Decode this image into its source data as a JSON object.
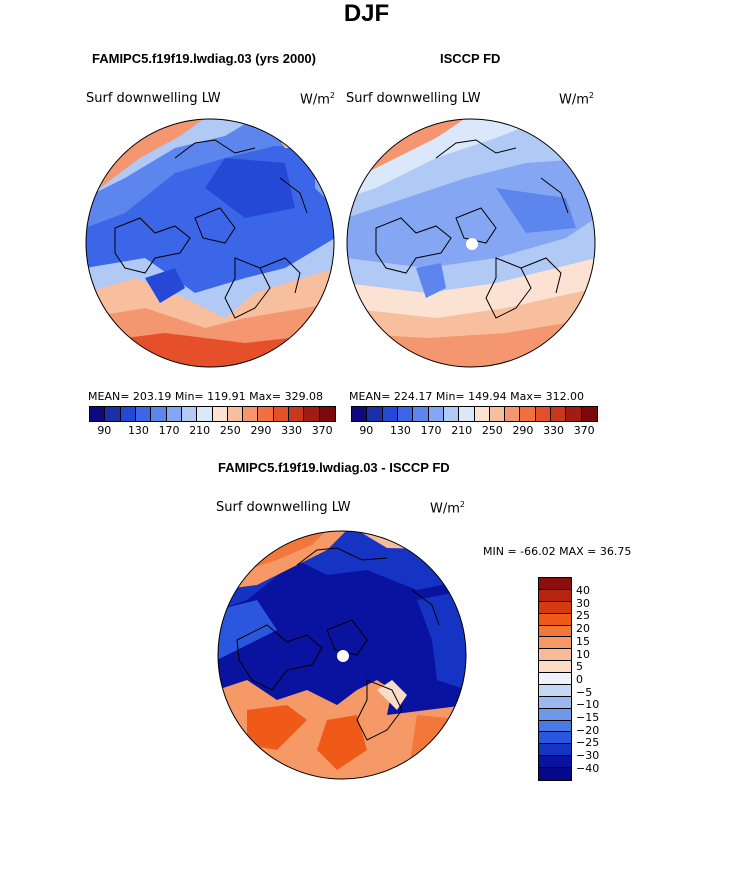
{
  "title": "DJF",
  "panels": {
    "model": {
      "subtitle": "FAMIPC5.f19f19.lwdiag.03 (yrs 2000)",
      "label": "Surf downwelling LW",
      "units": "W/m",
      "units_exp": "2",
      "stats": "MEAN= 203.19  Min= 119.91  Max= 329.08"
    },
    "obs": {
      "subtitle": "ISCCP FD",
      "label": "Surf downwelling LW",
      "units": "W/m",
      "units_exp": "2",
      "stats": "MEAN= 224.17  Min= 149.94  Max= 312.00"
    },
    "diff": {
      "subtitle": "FAMIPC5.f19f19.lwdiag.03 - ISCCP FD",
      "label": "Surf downwelling LW",
      "units": "W/m",
      "units_exp": "2",
      "stats": "MIN = -66.02 MAX =  36.75"
    }
  },
  "colorbar_abs": {
    "colors": [
      "#0c0a7e",
      "#1b2fa8",
      "#2548d6",
      "#3b66e8",
      "#5c86ee",
      "#85a6f2",
      "#b0c9f5",
      "#dbe7fa",
      "#fbe2d2",
      "#f8bf9f",
      "#f4966f",
      "#f0703e",
      "#e5502a",
      "#c7381e",
      "#a11d14",
      "#7c0a0a"
    ],
    "ticks": [
      "90",
      "130",
      "170",
      "210",
      "250",
      "290",
      "330",
      "370"
    ]
  },
  "colorbar_diff": {
    "colors": [
      "#8b0f0f",
      "#b52311",
      "#d6390f",
      "#ef5a18",
      "#f2773b",
      "#f59966",
      "#f8bb98",
      "#fbdcc7",
      "#eef3fb",
      "#c4d7f5",
      "#9ab9f0",
      "#7098ea",
      "#4a79e6",
      "#2a57dd",
      "#1634c4",
      "#0a12a0",
      "#07088a"
    ],
    "labels": [
      "40",
      "30",
      "25",
      "20",
      "15",
      "10",
      "5",
      "0",
      "−5",
      "−10",
      "−15",
      "−20",
      "−25",
      "−30",
      "−40"
    ]
  }
}
